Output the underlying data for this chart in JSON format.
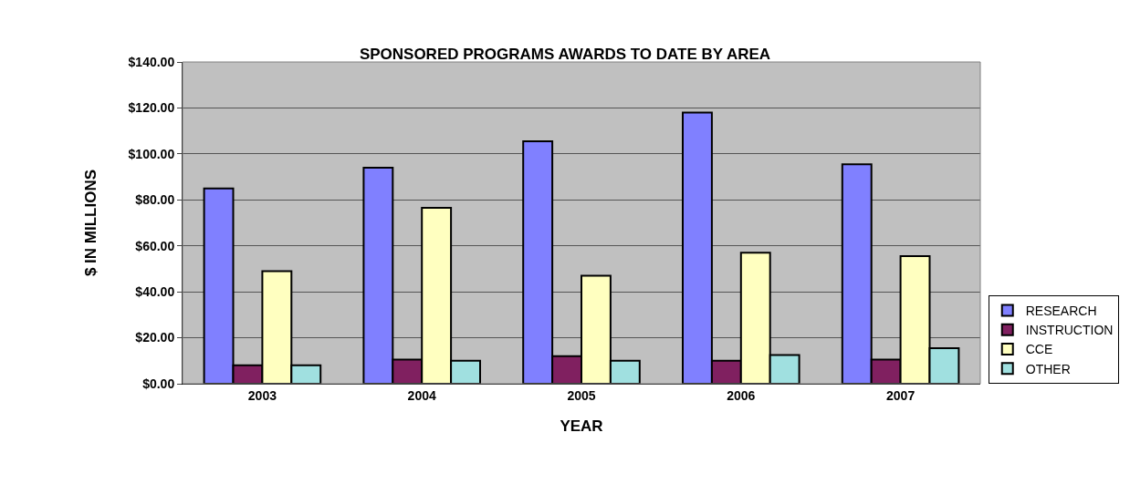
{
  "chart_data": {
    "type": "bar",
    "title": "SPONSORED PROGRAMS AWARDS TO DATE BY AREA",
    "xlabel": "YEAR",
    "ylabel": "$ IN MILLIONS",
    "categories": [
      "2003",
      "2004",
      "2005",
      "2006",
      "2007"
    ],
    "series": [
      {
        "name": "RESEARCH",
        "color": "#8080ff",
        "values": [
          85,
          94,
          105.5,
          118,
          95.5
        ]
      },
      {
        "name": "INSTRUCTION",
        "color": "#802060",
        "values": [
          8,
          10.5,
          12,
          10,
          10.5
        ]
      },
      {
        "name": "CCE",
        "color": "#ffffc0",
        "values": [
          49,
          76.5,
          47,
          57,
          55.5
        ]
      },
      {
        "name": "OTHER",
        "color": "#a0e0e0",
        "values": [
          8,
          10,
          10,
          12.5,
          15.5
        ]
      }
    ],
    "ylim": [
      0,
      140
    ],
    "yticks": [
      {
        "value": 0,
        "label": "$0.00"
      },
      {
        "value": 20,
        "label": "$20.00"
      },
      {
        "value": 40,
        "label": "$40.00"
      },
      {
        "value": 60,
        "label": "$60.00"
      },
      {
        "value": 80,
        "label": "$80.00"
      },
      {
        "value": 100,
        "label": "$100.00"
      },
      {
        "value": 120,
        "label": "$120.00"
      },
      {
        "value": 140,
        "label": "$140.00"
      }
    ],
    "grid": "y",
    "legend": "bottom right"
  }
}
